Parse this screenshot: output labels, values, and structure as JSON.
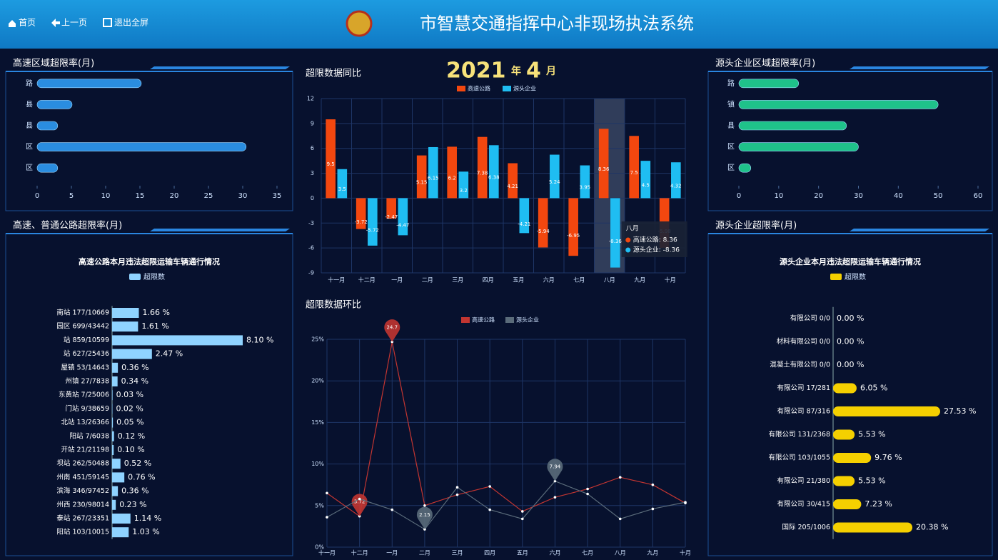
{
  "header": {
    "nav": [
      "首页",
      "上一页",
      "退出全屏"
    ],
    "title": "市智慧交通指挥中心非现场执法系统"
  },
  "chart_data": [
    {
      "type": "hbar",
      "title": "高速区域超限率(月)",
      "categories": [
        "路",
        "县",
        "县",
        "区",
        "区"
      ],
      "values": [
        15.2,
        5.1,
        3.0,
        30.5,
        3.0
      ],
      "color": "#2a8de0",
      "xlim": [
        0,
        35
      ],
      "xticks": [
        0,
        5,
        10,
        15,
        20,
        25,
        30,
        35
      ]
    },
    {
      "type": "bar",
      "title": "超限数据同比",
      "heading": [
        "2021",
        "年",
        "4",
        "月"
      ],
      "categories": [
        "十一月",
        "十二月",
        "一月",
        "二月",
        "三月",
        "四月",
        "五月",
        "六月",
        "七月",
        "八月",
        "九月",
        "十月"
      ],
      "series": [
        {
          "name": "高速公路",
          "color": "#f2470f",
          "values": [
            9.5,
            -3.72,
            -2.47,
            5.15,
            6.2,
            7.38,
            4.21,
            -5.94,
            -6.95,
            8.36,
            7.5,
            -5.98
          ]
        },
        {
          "name": "源头企业",
          "color": "#1fbdf2",
          "values": [
            3.5,
            -5.72,
            -4.47,
            6.15,
            3.2,
            6.38,
            -4.21,
            5.24,
            3.95,
            -8.36,
            4.5,
            4.32
          ]
        }
      ],
      "ylim": [
        -9,
        12
      ],
      "yticks": [
        -9,
        -6,
        -3,
        0,
        3,
        6,
        9,
        12
      ],
      "grid": true,
      "tooltip": {
        "title": "八月",
        "items": [
          "高速公路: 8.36",
          "源头企业: -8.36"
        ]
      }
    },
    {
      "type": "line",
      "title": "超限数据环比",
      "categories": [
        "十一月",
        "十二月",
        "一月",
        "二月",
        "三月",
        "四月",
        "五月",
        "六月",
        "七月",
        "八月",
        "九月",
        "十月"
      ],
      "series": [
        {
          "name": "高速公路",
          "color": "#c23531",
          "values": [
            6.5,
            3.72,
            24.7,
            5.0,
            6.3,
            7.3,
            4.3,
            6.0,
            7.0,
            8.4,
            7.5,
            5.3
          ]
        },
        {
          "name": "源头企业",
          "color": "#5a6b7a",
          "values": [
            3.6,
            5.8,
            4.5,
            2.15,
            7.2,
            4.5,
            3.4,
            7.94,
            6.4,
            3.4,
            4.6,
            5.4
          ]
        }
      ],
      "ylim": [
        0,
        25
      ],
      "yticks": [
        {
          "value": 0,
          "label": "0%"
        },
        {
          "value": 5,
          "label": "5%"
        },
        {
          "value": 10,
          "label": "10%"
        },
        {
          "value": 15,
          "label": "15%"
        },
        {
          "value": 20,
          "label": "20%"
        },
        {
          "value": 25,
          "label": "25%"
        }
      ],
      "grid": true
    },
    {
      "type": "hbar",
      "title": "源头企业区域超限率(月)",
      "categories": [
        "路",
        "镇",
        "县",
        "区",
        "区"
      ],
      "values": [
        15,
        50,
        27,
        30,
        3
      ],
      "color": "#1fc28a",
      "xlim": [
        0,
        60
      ],
      "xticks": [
        0,
        10,
        20,
        30,
        40,
        50,
        60
      ]
    },
    {
      "type": "ranked",
      "title": "高速、普通公路超限率(月)",
      "subtitle": "高速公路本月违法超限运输车辆通行情况",
      "categories": [
        "南站 177/10669",
        "园区 699/43442",
        "站 859/10599",
        "站 627/25436",
        "屋镇 53/14643",
        "州镇 27/7838",
        "东黄站 7/25006",
        "门站 9/38659",
        "北站 13/26366",
        "阳站 7/6038",
        "开站 21/21198",
        "坝站 262/50488",
        "州南 451/59145",
        "滨海 346/97452",
        "州西 230/98014",
        "泰站 267/23351",
        "阳站 103/10015"
      ],
      "series": [
        {
          "name": "超限数",
          "color": "#8fd3ff",
          "values": [
            1.66,
            1.61,
            8.1,
            2.47,
            0.36,
            0.34,
            0.03,
            0.02,
            0.05,
            0.12,
            0.1,
            0.52,
            0.76,
            0.36,
            0.23,
            1.14,
            1.03
          ],
          "value_labels": [
            "1.66 %",
            "1.61 %",
            "8.10 %",
            "2.47 %",
            "0.36 %",
            "0.34 %",
            "0.03 %",
            "0.02 %",
            "0.05 %",
            "0.12 %",
            "0.10 %",
            "0.52 %",
            "0.76 %",
            "0.36 %",
            "0.23 %",
            "1.14 %",
            "1.03 %"
          ]
        }
      ]
    },
    {
      "type": "ranked",
      "title": "源头企业超限率(月)",
      "subtitle": "源头企业本月违法超限运输车辆通行情况",
      "categories": [
        "有限公司 0/0",
        "材料有限公司 0/0",
        "混凝土有限公司 0/0",
        "有限公司 17/281",
        "有限公司 87/316",
        "有限公司 131/2368",
        "有限公司 103/1055",
        "有限公司 21/380",
        "有限公司 30/415",
        "国际 205/1006"
      ],
      "series": [
        {
          "name": "超限数",
          "color": "#f5d000",
          "values": [
            0,
            0,
            0,
            6.05,
            27.53,
            5.53,
            9.76,
            5.53,
            7.23,
            20.38
          ],
          "value_labels": [
            "0.00 %",
            "0.00 %",
            "0.00 %",
            "6.05 %",
            "27.53 %",
            "5.53 %",
            "9.76 %",
            "5.53 %",
            "7.23 %",
            "20.38 %"
          ]
        }
      ]
    }
  ]
}
